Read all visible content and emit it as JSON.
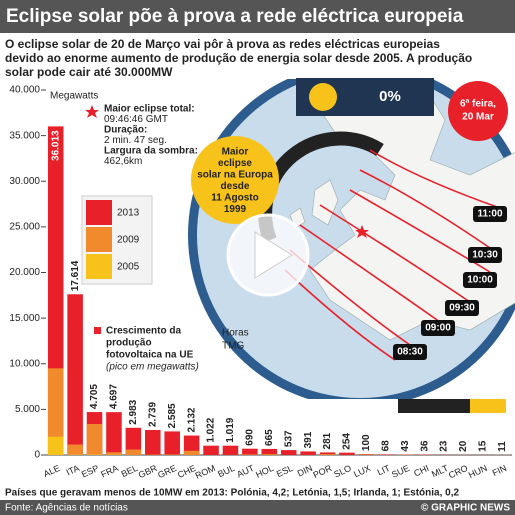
{
  "header": {
    "title": "Eclipse solar põe à prova a rede eléctrica europeia",
    "subtitle_lines": [
      "O eclipse solar de 20 de Março vai pôr à prova as redes eléctricas europeias",
      "devido ao enorme aumento de produção de energia solar desde 2005. A produção",
      "solar pode cair até 30.000MW"
    ]
  },
  "chart_data": {
    "type": "bar",
    "y_label": "Megawatts",
    "annotation_lines": [
      "Crescimento da",
      "produção",
      "fotovoltaica na UE"
    ],
    "annotation_note": "(pico em megawatts)",
    "categories": [
      "ALE",
      "ITA",
      "ESP",
      "FRA",
      "BEL",
      "GBR",
      "GRE",
      "CHE",
      "ROM",
      "BUL",
      "AUT",
      "HOL",
      "ESL",
      "DIN",
      "POR",
      "SLO",
      "LUX",
      "LIT",
      "SUE",
      "CHI",
      "MLT",
      "CRO",
      "HUN",
      "FIN"
    ],
    "series": [
      {
        "name": "2013",
        "color": "#e8202a",
        "values": [
          36013,
          17614,
          4705,
          4697,
          2983,
          2739,
          2585,
          2132,
          1022,
          1019,
          690,
          665,
          537,
          391,
          281,
          254,
          100,
          68,
          43,
          36,
          23,
          20,
          15,
          11
        ],
        "value_labels": [
          "36.013",
          "17.614",
          "4.705",
          "4.697",
          "2.983",
          "2.739",
          "2.585",
          "2.132",
          "1.022",
          "1.019",
          "690",
          "665",
          "537",
          "391",
          "281",
          "254",
          "100",
          "68",
          "43",
          "36",
          "23",
          "20",
          "15",
          "11"
        ]
      },
      {
        "name": "2009",
        "color": "#f08a2c",
        "values": [
          9500,
          1150,
          3400,
          300,
          600,
          30,
          55,
          460,
          0,
          6,
          50,
          70,
          0,
          5,
          100,
          9,
          26,
          0,
          9,
          3,
          2,
          0,
          1,
          8
        ]
      },
      {
        "name": "2005",
        "color": "#f7c21a",
        "values": [
          2000,
          40,
          60,
          30,
          0,
          10,
          5,
          0,
          0,
          0,
          20,
          50,
          0,
          3,
          3,
          0,
          24,
          0,
          4,
          0,
          0,
          0,
          0,
          4
        ]
      }
    ],
    "ylim": [
      0,
      40000
    ],
    "yticks": [
      0,
      {
        "value": 5000,
        "label": "5.000"
      },
      {
        "value": 10000,
        "label": "10.000"
      },
      {
        "value": 15000,
        "label": "15.000"
      },
      {
        "value": 20000,
        "label": "20.000"
      },
      {
        "value": 25000,
        "label": "25.000"
      },
      {
        "value": 30000,
        "label": "30.000"
      },
      {
        "value": 35000,
        "label": "35.000"
      },
      {
        "value": 40000,
        "label": "40.000"
      }
    ],
    "footnote": "Países que geravam menos de 10MW em 2013: Polónia, 4,2; Letónia, 1,5; Irlanda, 1; Estónia, 0,2"
  },
  "eclipse_info": [
    "Maior eclipse total:",
    "09:46:46 GMT",
    "Duração:",
    "2 min. 47 seg.",
    "Largura da sombra:",
    "462,6km"
  ],
  "map": {
    "percent": "0%",
    "date_lines": [
      "6ª feira,",
      "20 Mar"
    ],
    "badge_lines": [
      "Maior",
      "eclipse",
      "solar na Europa",
      "desde",
      "11 Agosto",
      "1999"
    ],
    "times": [
      "11:00",
      "10:30",
      "10:00",
      "09:30",
      "09:00",
      "08:30"
    ],
    "hours_lines": [
      "Horas",
      "TMG"
    ]
  },
  "footer": {
    "source": "Fonte: Agências de notícias",
    "credit": "© GRAPHIC NEWS"
  }
}
